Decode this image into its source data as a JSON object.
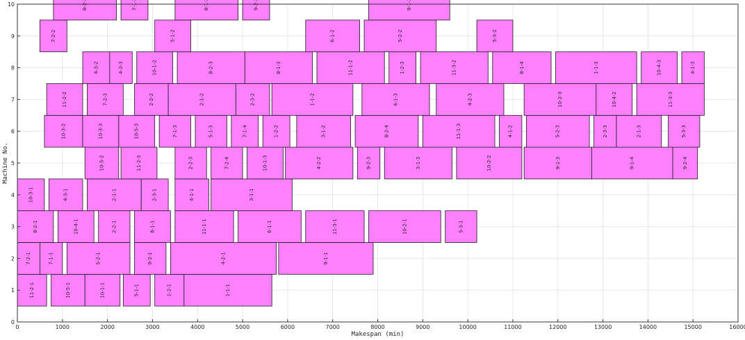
{
  "chart_data": {
    "type": "gantt",
    "title": "",
    "xlabel": "Makespan (min)",
    "ylabel": "Machine No.",
    "xlim": [
      0,
      16000
    ],
    "ylim": [
      0,
      10
    ],
    "grid": true,
    "bar_color": "#ff80ff",
    "xticks": [
      "0",
      "1000",
      "2000",
      "3000",
      "4000",
      "5000",
      "6000",
      "7000",
      "8000",
      "9000",
      "10000",
      "11000",
      "12000",
      "13000",
      "14000",
      "15000",
      "16000"
    ],
    "yticks": [
      "0",
      "1",
      "2",
      "3",
      "4",
      "5",
      "6",
      "7",
      "8",
      "9",
      "10"
    ],
    "operations": [
      {
        "machine": 1,
        "label": "11-2-1",
        "start": 0,
        "end": 650
      },
      {
        "machine": 1,
        "label": "10-5-1",
        "start": 750,
        "end": 1500
      },
      {
        "machine": 1,
        "label": "10-1-1",
        "start": 1500,
        "end": 2280
      },
      {
        "machine": 1,
        "label": "5-1-1",
        "start": 2350,
        "end": 2950
      },
      {
        "machine": 1,
        "label": "1-2-1",
        "start": 3050,
        "end": 3700
      },
      {
        "machine": 1,
        "label": "1-1-1",
        "start": 3700,
        "end": 5650
      },
      {
        "machine": 2,
        "label": "7-2-1",
        "start": 0,
        "end": 500
      },
      {
        "machine": 2,
        "label": "7-1-1",
        "start": 500,
        "end": 1000
      },
      {
        "machine": 2,
        "label": "5-2-1",
        "start": 1100,
        "end": 2500
      },
      {
        "machine": 2,
        "label": "9-2-1",
        "start": 2600,
        "end": 3300
      },
      {
        "machine": 2,
        "label": "4-2-1",
        "start": 3400,
        "end": 5750
      },
      {
        "machine": 2,
        "label": "9-1-1",
        "start": 5800,
        "end": 7900
      },
      {
        "machine": 3,
        "label": "8-2-1",
        "start": 0,
        "end": 800
      },
      {
        "machine": 3,
        "label": "10-4-1",
        "start": 900,
        "end": 1700
      },
      {
        "machine": 3,
        "label": "2-2-1",
        "start": 1800,
        "end": 2500
      },
      {
        "machine": 3,
        "label": "8-1-1",
        "start": 2600,
        "end": 3400
      },
      {
        "machine": 3,
        "label": "11-1-1",
        "start": 3500,
        "end": 4800
      },
      {
        "machine": 3,
        "label": "6-1-1",
        "start": 4900,
        "end": 6300
      },
      {
        "machine": 3,
        "label": "11-3-1",
        "start": 6400,
        "end": 7700
      },
      {
        "machine": 3,
        "label": "10-2-1",
        "start": 7800,
        "end": 9400
      },
      {
        "machine": 3,
        "label": "5-3-1",
        "start": 9500,
        "end": 10200
      },
      {
        "machine": 4,
        "label": "10-3-1",
        "start": 0,
        "end": 600
      },
      {
        "machine": 4,
        "label": "4-3-1",
        "start": 700,
        "end": 1450
      },
      {
        "machine": 4,
        "label": "2-1-1",
        "start": 1550,
        "end": 2750
      },
      {
        "machine": 4,
        "label": "2-3-1",
        "start": 2750,
        "end": 3350
      },
      {
        "machine": 4,
        "label": "4-1-1",
        "start": 3500,
        "end": 4250
      },
      {
        "machine": 4,
        "label": "3-1-1",
        "start": 4300,
        "end": 6100
      },
      {
        "machine": 5,
        "label": "10-5-2",
        "start": 1500,
        "end": 2250
      },
      {
        "machine": 5,
        "label": "11-2-3",
        "start": 2300,
        "end": 3100
      },
      {
        "machine": 5,
        "label": "2-2-3",
        "start": 3500,
        "end": 4200
      },
      {
        "machine": 5,
        "label": "7-2-4",
        "start": 4300,
        "end": 5000
      },
      {
        "machine": 5,
        "label": "10-1-3",
        "start": 5100,
        "end": 5900
      },
      {
        "machine": 5,
        "label": "4-2-2",
        "start": 5950,
        "end": 7450
      },
      {
        "machine": 5,
        "label": "9-2-3",
        "start": 7550,
        "end": 8050
      },
      {
        "machine": 5,
        "label": "3-1-3",
        "start": 8150,
        "end": 9650
      },
      {
        "machine": 5,
        "label": "10-2-2",
        "start": 9750,
        "end": 11200
      },
      {
        "machine": 5,
        "label": "9-1-3",
        "start": 11250,
        "end": 12750
      },
      {
        "machine": 5,
        "label": "9-1-4",
        "start": 12750,
        "end": 14550
      },
      {
        "machine": 5,
        "label": "9-2-4",
        "start": 14550,
        "end": 15100
      },
      {
        "machine": 6,
        "label": "10-3-2",
        "start": 600,
        "end": 1450
      },
      {
        "machine": 6,
        "label": "10-3-3",
        "start": 1450,
        "end": 2250
      },
      {
        "machine": 6,
        "label": "10-5-3",
        "start": 2250,
        "end": 3050
      },
      {
        "machine": 6,
        "label": "7-1-3",
        "start": 3150,
        "end": 3850
      },
      {
        "machine": 6,
        "label": "5-1-3",
        "start": 3950,
        "end": 4650
      },
      {
        "machine": 6,
        "label": "7-1-4",
        "start": 4750,
        "end": 5350
      },
      {
        "machine": 6,
        "label": "1-2-2",
        "start": 5450,
        "end": 6050
      },
      {
        "machine": 6,
        "label": "3-1-2",
        "start": 6200,
        "end": 7400
      },
      {
        "machine": 6,
        "label": "8-2-4",
        "start": 7500,
        "end": 8900
      },
      {
        "machine": 6,
        "label": "11-1-3",
        "start": 9000,
        "end": 10600
      },
      {
        "machine": 6,
        "label": "4-1-2",
        "start": 10700,
        "end": 11200
      },
      {
        "machine": 6,
        "label": "5-2-3",
        "start": 11300,
        "end": 12700
      },
      {
        "machine": 6,
        "label": "2-3-3",
        "start": 12800,
        "end": 13300
      },
      {
        "machine": 6,
        "label": "2-1-3",
        "start": 13300,
        "end": 14300
      },
      {
        "machine": 6,
        "label": "5-3-3",
        "start": 14450,
        "end": 15150
      },
      {
        "machine": 7,
        "label": "11-2-2",
        "start": 650,
        "end": 1450
      },
      {
        "machine": 7,
        "label": "7-2-3",
        "start": 1550,
        "end": 2350
      },
      {
        "machine": 7,
        "label": "2-2-2",
        "start": 2600,
        "end": 3350
      },
      {
        "machine": 7,
        "label": "2-1-2",
        "start": 3350,
        "end": 4850
      },
      {
        "machine": 7,
        "label": "2-3-2",
        "start": 4850,
        "end": 5600
      },
      {
        "machine": 7,
        "label": "1-1-2",
        "start": 5650,
        "end": 7450
      },
      {
        "machine": 7,
        "label": "6-1-3",
        "start": 7650,
        "end": 9150
      },
      {
        "machine": 7,
        "label": "4-2-3",
        "start": 9300,
        "end": 10800
      },
      {
        "machine": 7,
        "label": "10-2-3",
        "start": 11250,
        "end": 12850
      },
      {
        "machine": 7,
        "label": "10-4-2",
        "start": 12850,
        "end": 13650
      },
      {
        "machine": 7,
        "label": "11-3-3",
        "start": 13750,
        "end": 15250
      },
      {
        "machine": 8,
        "label": "4-3-2",
        "start": 1450,
        "end": 2050
      },
      {
        "machine": 8,
        "label": "4-3-3",
        "start": 2050,
        "end": 2550
      },
      {
        "machine": 8,
        "label": "10-1-2",
        "start": 2650,
        "end": 3450
      },
      {
        "machine": 8,
        "label": "8-2-3",
        "start": 3550,
        "end": 5050
      },
      {
        "machine": 8,
        "label": "8-1-3",
        "start": 5050,
        "end": 6550
      },
      {
        "machine": 8,
        "label": "11-1-2",
        "start": 6650,
        "end": 8150
      },
      {
        "machine": 8,
        "label": "1-2-3",
        "start": 8250,
        "end": 8850
      },
      {
        "machine": 8,
        "label": "11-3-2",
        "start": 8950,
        "end": 10450
      },
      {
        "machine": 8,
        "label": "8-1-4",
        "start": 10550,
        "end": 11850
      },
      {
        "machine": 8,
        "label": "1-1-3",
        "start": 11950,
        "end": 13750
      },
      {
        "machine": 8,
        "label": "10-4-3",
        "start": 13850,
        "end": 14650
      },
      {
        "machine": 8,
        "label": "4-1-3",
        "start": 14750,
        "end": 15250
      },
      {
        "machine": 9,
        "label": "7-2-2",
        "start": 500,
        "end": 1100
      },
      {
        "machine": 9,
        "label": "5-1-2",
        "start": 3050,
        "end": 3850
      },
      {
        "machine": 9,
        "label": "6-1-2",
        "start": 6400,
        "end": 7600
      },
      {
        "machine": 9,
        "label": "5-2-2",
        "start": 7700,
        "end": 9300
      },
      {
        "machine": 9,
        "label": "5-3-2",
        "start": 10200,
        "end": 11000
      },
      {
        "machine": 10,
        "label": "8-2-2",
        "start": 800,
        "end": 2200
      },
      {
        "machine": 10,
        "label": "7-1-2",
        "start": 2300,
        "end": 2900
      },
      {
        "machine": 10,
        "label": "8-1-2",
        "start": 3500,
        "end": 4900
      },
      {
        "machine": 10,
        "label": "9-2-2",
        "start": 5000,
        "end": 5600
      },
      {
        "machine": 10,
        "label": "9-1-2",
        "start": 7800,
        "end": 9600
      }
    ]
  }
}
